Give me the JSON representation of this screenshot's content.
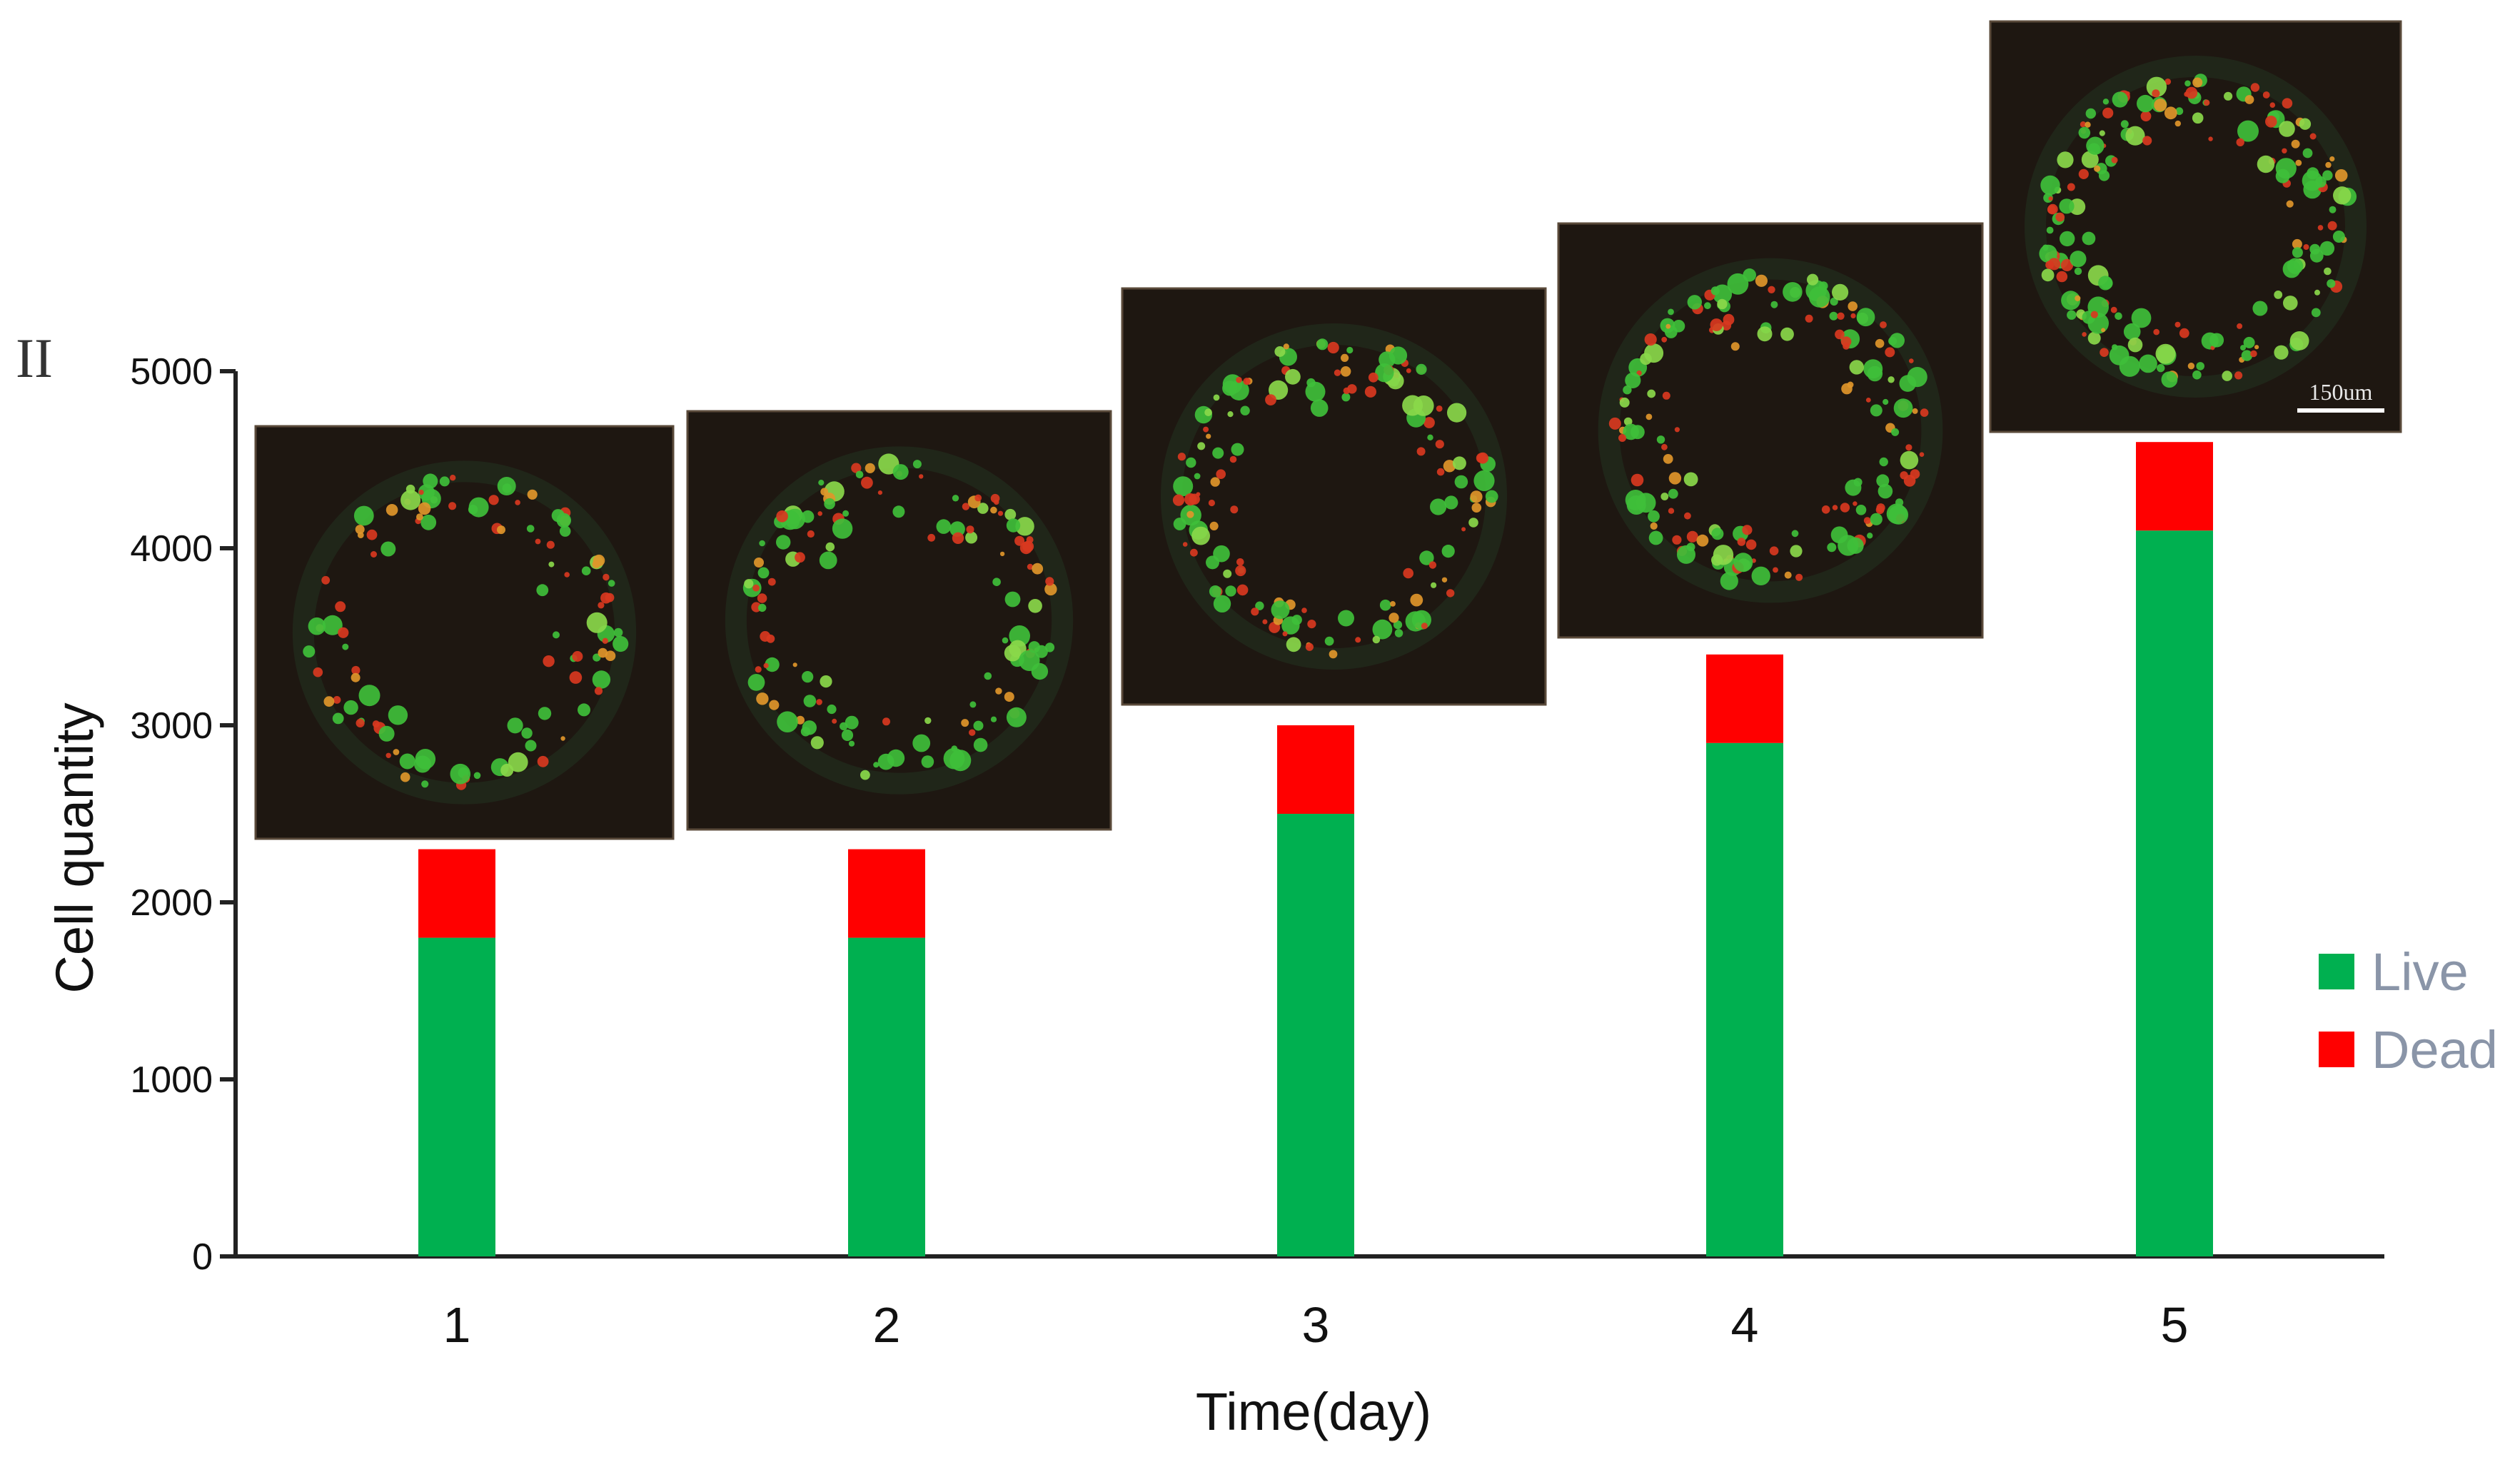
{
  "panel_label": "II",
  "chart_data": {
    "type": "bar",
    "stacked": true,
    "categories": [
      "1",
      "2",
      "3",
      "4",
      "5"
    ],
    "series": [
      {
        "name": "Live",
        "color": "#00b050",
        "values": [
          1800,
          1800,
          2500,
          2900,
          4100
        ]
      },
      {
        "name": "Dead",
        "color": "#ff0000",
        "values": [
          500,
          500,
          500,
          500,
          500
        ]
      }
    ],
    "xlabel": "Time(day)",
    "ylabel": "Cell quantity",
    "ylim": [
      0,
      5000
    ],
    "yticks": [
      0,
      1000,
      2000,
      3000,
      4000,
      5000
    ],
    "grid": false,
    "legend_position": "right",
    "micrograph_insets": [
      "day-1",
      "day-2",
      "day-3",
      "day-4",
      "day-5"
    ],
    "scale_bar_label": "150um"
  }
}
